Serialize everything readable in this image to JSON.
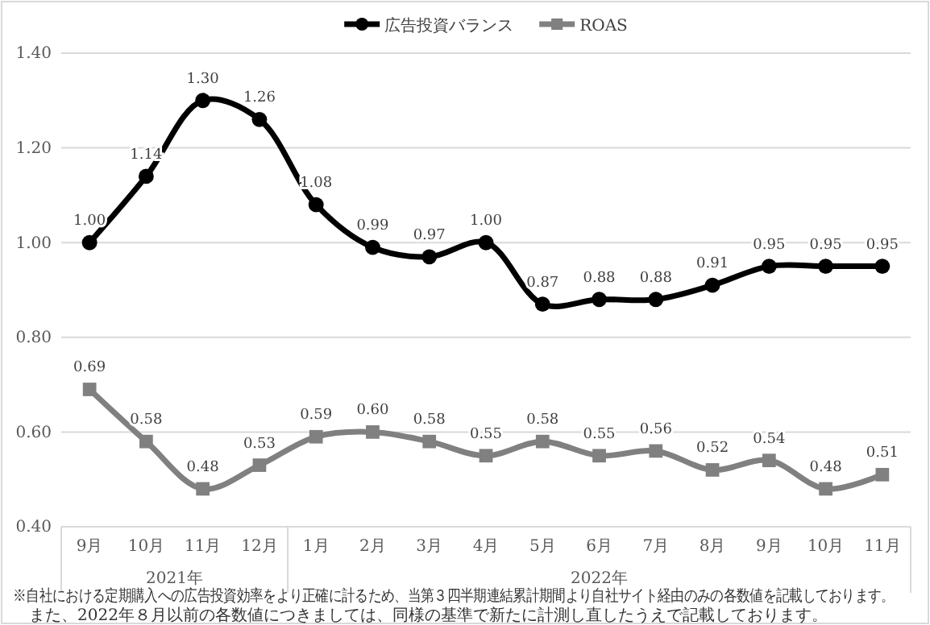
{
  "chart_data": {
    "type": "line",
    "categories": [
      "9月",
      "10月",
      "11月",
      "12月",
      "1月",
      "2月",
      "3月",
      "4月",
      "5月",
      "6月",
      "7月",
      "8月",
      "9月",
      "10月",
      "11月"
    ],
    "series": [
      {
        "name": "広告投資バランス",
        "color": "#000000",
        "marker": "circle",
        "values": [
          1.0,
          1.14,
          1.3,
          1.26,
          1.08,
          0.99,
          0.97,
          1.0,
          0.87,
          0.88,
          0.88,
          0.91,
          0.95,
          0.95,
          0.95
        ],
        "value_labels": [
          "1.00",
          "1.14",
          "1.30",
          "1.26",
          "1.08",
          "0.99",
          "0.97",
          "1.00",
          "0.87",
          "0.88",
          "0.88",
          "0.91",
          "0.95",
          "0.95",
          "0.95"
        ]
      },
      {
        "name": "ROAS",
        "color": "#808080",
        "marker": "square",
        "values": [
          0.69,
          0.58,
          0.48,
          0.53,
          0.59,
          0.6,
          0.58,
          0.55,
          0.58,
          0.55,
          0.56,
          0.52,
          0.54,
          0.48,
          0.51
        ],
        "value_labels": [
          "0.69",
          "0.58",
          "0.48",
          "0.53",
          "0.59",
          "0.60",
          "0.58",
          "0.55",
          "0.58",
          "0.55",
          "0.56",
          "0.52",
          "0.54",
          "0.48",
          "0.51"
        ]
      }
    ],
    "ylim": [
      0.4,
      1.4
    ],
    "yticks": [
      {
        "value": 0.4,
        "label": "0.40"
      },
      {
        "value": 0.6,
        "label": "0.60"
      },
      {
        "value": 0.8,
        "label": "0.80"
      },
      {
        "value": 1.0,
        "label": "1.00"
      },
      {
        "value": 1.2,
        "label": "1.20"
      },
      {
        "value": 1.4,
        "label": "1.40"
      }
    ],
    "grid": "y",
    "legend": "top",
    "line_style": "solid",
    "annotations": [
      "2021年",
      "2022年",
      "※自社における定期購入への広告投資効率をより正確に計るため、当第３四半期連結累計期間より自社サイト経由のみの各数値を記載しております。",
      "また、2022年８月以前の各数値につきましては、同様の基準で新たに計測し直したうえで記載しております。"
    ]
  }
}
